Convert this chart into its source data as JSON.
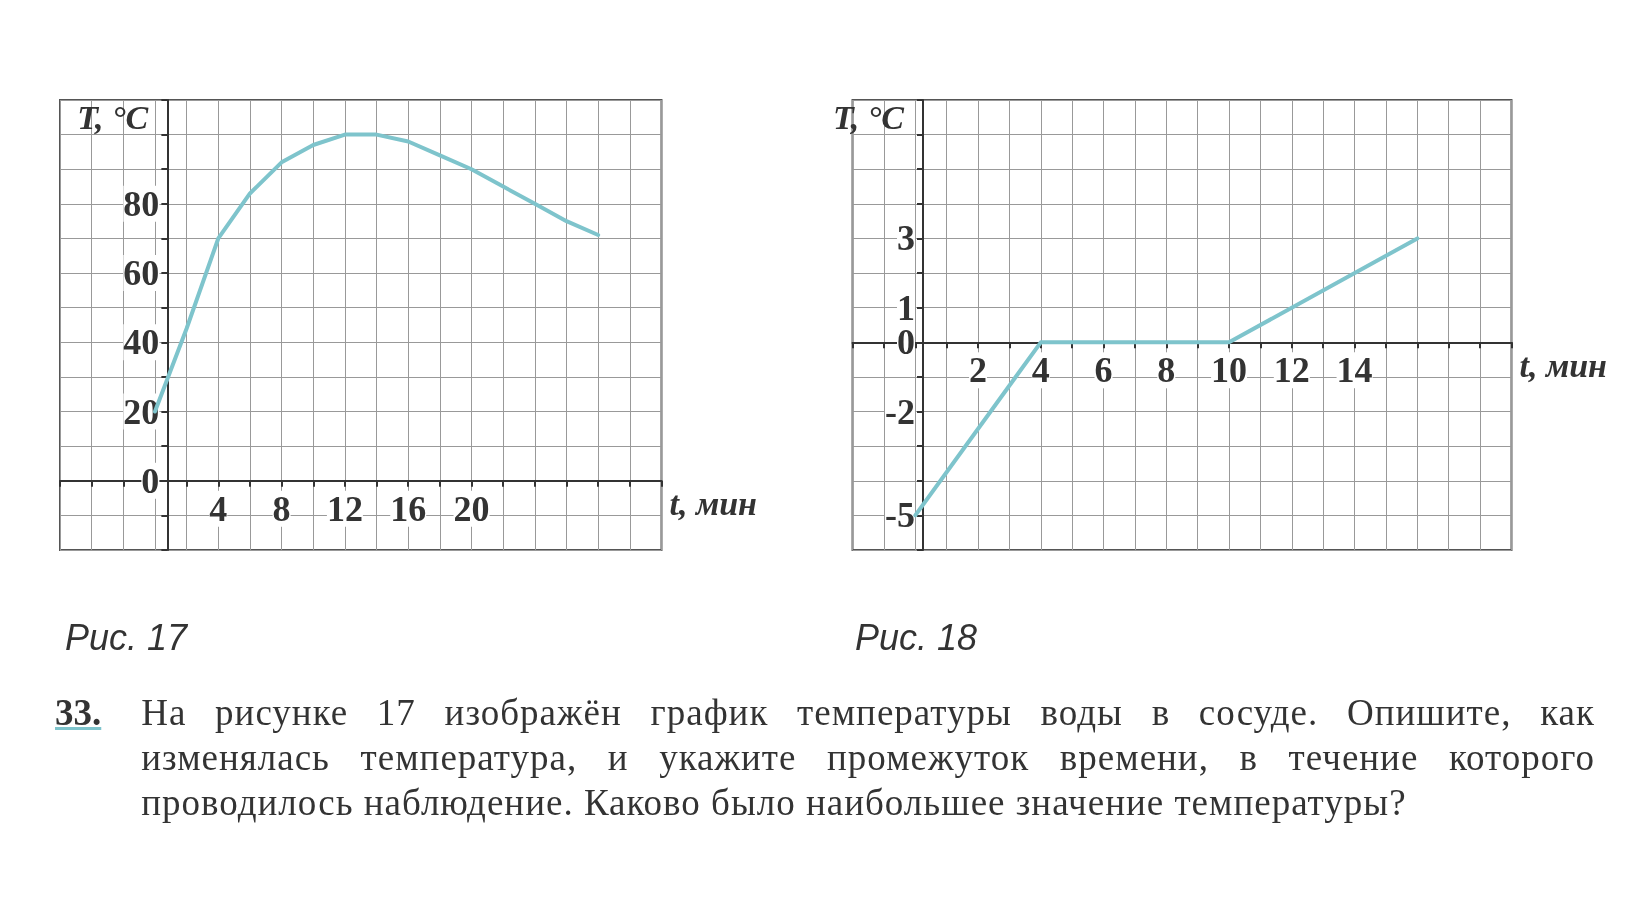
{
  "chart_data": [
    {
      "type": "line",
      "title": "Рис. 17",
      "xlabel": "t, мин",
      "ylabel": "T, °C",
      "grid": true,
      "marker": "none",
      "line_style": "solid",
      "x": [
        0,
        2,
        4,
        6,
        8,
        10,
        12,
        14,
        16,
        18,
        20,
        22,
        24,
        26,
        28
      ],
      "series": [
        {
          "color": "#7ec4cc",
          "values": [
            20,
            44,
            70,
            83,
            92,
            97,
            100,
            100,
            98,
            94,
            90,
            85,
            80,
            75,
            71
          ]
        }
      ],
      "xlim": [
        -6,
        32
      ],
      "ylim": [
        -20,
        110
      ],
      "xticks": [
        {
          "value": -6,
          "label": null
        },
        {
          "value": -4,
          "label": null
        },
        {
          "value": -2,
          "label": null
        },
        {
          "value": 0,
          "label": null
        },
        {
          "value": 2,
          "label": null
        },
        4,
        {
          "value": 6,
          "label": null
        },
        8,
        {
          "value": 10,
          "label": null
        },
        12,
        {
          "value": 14,
          "label": null
        },
        16,
        {
          "value": 18,
          "label": null
        },
        20,
        {
          "value": 22,
          "label": null
        },
        {
          "value": 24,
          "label": null
        },
        {
          "value": 26,
          "label": null
        },
        {
          "value": 28,
          "label": null
        },
        {
          "value": 30,
          "label": null
        },
        {
          "value": 32,
          "label": null
        }
      ],
      "yticks": [
        {
          "value": -20,
          "label": null
        },
        {
          "value": -10,
          "label": null
        },
        0,
        {
          "value": 10,
          "label": null
        },
        20,
        {
          "value": 30,
          "label": null
        },
        40,
        {
          "value": 50,
          "label": null
        },
        60,
        {
          "value": 70,
          "label": null
        },
        80,
        {
          "value": 90,
          "label": null
        },
        {
          "value": 100,
          "label": null
        },
        {
          "value": 110,
          "label": null
        }
      ]
    },
    {
      "type": "line",
      "title": "Рис. 18",
      "xlabel": "t, мин",
      "ylabel": "T, °C",
      "grid": true,
      "marker": "none",
      "line_style": "solid",
      "x": [
        0,
        4,
        10,
        16
      ],
      "series": [
        {
          "color": "#7ec4cc",
          "values": [
            -5,
            0,
            0,
            3
          ]
        }
      ],
      "xlim": [
        -2,
        19
      ],
      "ylim": [
        -6,
        7
      ],
      "xticks": [
        {
          "value": -2,
          "label": null
        },
        {
          "value": -1,
          "label": null
        },
        {
          "value": 0,
          "label": null
        },
        {
          "value": 1,
          "label": null
        },
        2,
        {
          "value": 3,
          "label": null
        },
        4,
        {
          "value": 5,
          "label": null
        },
        6,
        {
          "value": 7,
          "label": null
        },
        8,
        {
          "value": 9,
          "label": null
        },
        10,
        {
          "value": 11,
          "label": null
        },
        12,
        {
          "value": 13,
          "label": null
        },
        14,
        {
          "value": 15,
          "label": null
        },
        {
          "value": 16,
          "label": null
        },
        {
          "value": 17,
          "label": null
        },
        {
          "value": 18,
          "label": null
        },
        {
          "value": 19,
          "label": null
        }
      ],
      "yticks": [
        {
          "value": -6,
          "label": null
        },
        -5,
        {
          "value": -4,
          "label": null
        },
        {
          "value": -3,
          "label": null
        },
        -2,
        {
          "value": -1,
          "label": null
        },
        0,
        1,
        {
          "value": 2,
          "label": null
        },
        3,
        {
          "value": 4,
          "label": null
        },
        {
          "value": 5,
          "label": null
        },
        {
          "value": 6,
          "label": null
        },
        {
          "value": 7,
          "label": null
        }
      ]
    },
    {
      "type": "other",
      "annotations": [
        "33.",
        "На рисунке 17 изображён график температуры воды в сосуде. Опишите, как изменялась температура, и укажите промежуток времени, в течение которого проводилось наблюдение. Каково было наибольшее значение температуры?"
      ]
    }
  ]
}
